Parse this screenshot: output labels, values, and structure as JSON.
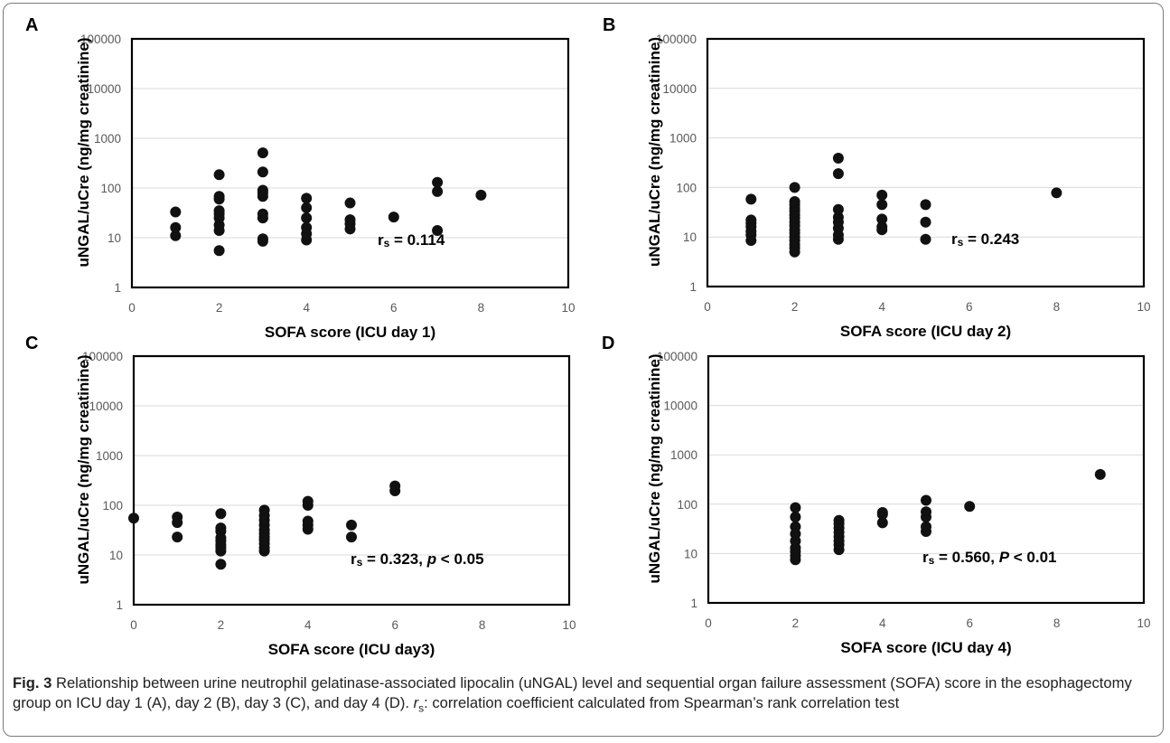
{
  "chart_data": [
    {
      "type": "scatter",
      "panel_label": "A",
      "xlabel": "SOFA score (ICU day 1)",
      "ylabel": "uNGAL/uCre (ng/mg creatinine)",
      "xlim": [
        0,
        10
      ],
      "ylim": [
        1,
        100000
      ],
      "yscale": "log",
      "x_ticks": [
        "0",
        "2",
        "4",
        "6",
        "8",
        "10"
      ],
      "y_ticks": [
        "1",
        "10",
        "100",
        "1000",
        "10000",
        "100000"
      ],
      "grid": "horizontal",
      "annotation_r": "r",
      "annotation_sub": "s",
      "annotation_text": " = 0.114",
      "annotation_p_label": "",
      "annotation_p_text": "",
      "points": [
        [
          1,
          11
        ],
        [
          1,
          16
        ],
        [
          1,
          33
        ],
        [
          2,
          5.5
        ],
        [
          2,
          14
        ],
        [
          2,
          18
        ],
        [
          2,
          25
        ],
        [
          2,
          30
        ],
        [
          2,
          35
        ],
        [
          2,
          60
        ],
        [
          2,
          68
        ],
        [
          2,
          185
        ],
        [
          3,
          8.5
        ],
        [
          3,
          9.5
        ],
        [
          3,
          25
        ],
        [
          3,
          30
        ],
        [
          3,
          68
        ],
        [
          3,
          80
        ],
        [
          3,
          90
        ],
        [
          3,
          210
        ],
        [
          3,
          510
        ],
        [
          4,
          9
        ],
        [
          4,
          12
        ],
        [
          4,
          16
        ],
        [
          4,
          25
        ],
        [
          4,
          40
        ],
        [
          4,
          62
        ],
        [
          5,
          15
        ],
        [
          5,
          19
        ],
        [
          5,
          23
        ],
        [
          5,
          50
        ],
        [
          6,
          26
        ],
        [
          7,
          14
        ],
        [
          7,
          85
        ],
        [
          7,
          130
        ],
        [
          8,
          72
        ]
      ]
    },
    {
      "type": "scatter",
      "panel_label": "B",
      "xlabel": "SOFA score (ICU day 2)",
      "ylabel": "uNGAL/uCre (ng/mg creatinine)",
      "xlim": [
        0,
        10
      ],
      "ylim": [
        1,
        100000
      ],
      "yscale": "log",
      "x_ticks": [
        "0",
        "2",
        "4",
        "6",
        "8",
        "10"
      ],
      "y_ticks": [
        "1",
        "10",
        "100",
        "1000",
        "10000",
        "100000"
      ],
      "grid": "horizontal",
      "annotation_r": "r",
      "annotation_sub": "s",
      "annotation_text": " = 0.243",
      "annotation_p_label": "",
      "annotation_p_text": "",
      "points": [
        [
          1,
          8.5
        ],
        [
          1,
          11
        ],
        [
          1,
          13
        ],
        [
          1,
          16
        ],
        [
          1,
          19
        ],
        [
          1,
          22
        ],
        [
          1,
          58
        ],
        [
          2,
          5
        ],
        [
          2,
          6
        ],
        [
          2,
          7
        ],
        [
          2,
          8.5
        ],
        [
          2,
          10
        ],
        [
          2,
          12
        ],
        [
          2,
          14
        ],
        [
          2,
          17
        ],
        [
          2,
          20
        ],
        [
          2,
          24
        ],
        [
          2,
          28
        ],
        [
          2,
          33
        ],
        [
          2,
          38
        ],
        [
          2,
          45
        ],
        [
          2,
          52
        ],
        [
          2,
          100
        ],
        [
          3,
          9
        ],
        [
          3,
          11
        ],
        [
          3,
          15
        ],
        [
          3,
          20
        ],
        [
          3,
          25
        ],
        [
          3,
          36
        ],
        [
          3,
          190
        ],
        [
          3,
          390
        ],
        [
          4,
          14
        ],
        [
          4,
          16
        ],
        [
          4,
          23
        ],
        [
          4,
          45
        ],
        [
          4,
          70
        ],
        [
          5,
          9
        ],
        [
          5,
          20
        ],
        [
          5,
          45
        ],
        [
          8,
          78
        ]
      ]
    },
    {
      "type": "scatter",
      "panel_label": "C",
      "xlabel": "SOFA score (ICU day3)",
      "ylabel": "uNGAL/uCre (ng/mg  creatinine)",
      "xlim": [
        0,
        10
      ],
      "ylim": [
        1,
        100000
      ],
      "yscale": "log",
      "x_ticks": [
        "0",
        "2",
        "4",
        "6",
        "8",
        "10"
      ],
      "y_ticks": [
        "1",
        "10",
        "100",
        "1000",
        "10000",
        "100000"
      ],
      "grid": "horizontal",
      "annotation_r": "r",
      "annotation_sub": "s",
      "annotation_text": " = 0.323,  ",
      "annotation_p_label": "p",
      "annotation_p_text": " < 0.05",
      "points": [
        [
          0,
          55
        ],
        [
          1,
          23
        ],
        [
          1,
          45
        ],
        [
          1,
          58
        ],
        [
          2,
          6.5
        ],
        [
          2,
          12
        ],
        [
          2,
          14
        ],
        [
          2,
          16
        ],
        [
          2,
          19
        ],
        [
          2,
          22
        ],
        [
          2,
          30
        ],
        [
          2,
          35
        ],
        [
          2,
          68
        ],
        [
          3,
          12
        ],
        [
          3,
          14
        ],
        [
          3,
          17
        ],
        [
          3,
          20
        ],
        [
          3,
          23
        ],
        [
          3,
          27
        ],
        [
          3,
          32
        ],
        [
          3,
          40
        ],
        [
          3,
          50
        ],
        [
          3,
          62
        ],
        [
          3,
          80
        ],
        [
          4,
          33
        ],
        [
          4,
          40
        ],
        [
          4,
          48
        ],
        [
          4,
          100
        ],
        [
          4,
          120
        ],
        [
          5,
          23
        ],
        [
          5,
          40
        ],
        [
          6,
          195
        ],
        [
          6,
          245
        ]
      ]
    },
    {
      "type": "scatter",
      "panel_label": "D",
      "xlabel": "SOFA score (ICU day 4)",
      "ylabel": "uNGAL/uCre (ng/mg creatinine)",
      "xlim": [
        0,
        10
      ],
      "ylim": [
        1,
        100000
      ],
      "yscale": "log",
      "x_ticks": [
        "0",
        "2",
        "4",
        "6",
        "8",
        "10"
      ],
      "y_ticks": [
        "1",
        "10",
        "100",
        "1000",
        "10000",
        "100000"
      ],
      "grid": "horizontal",
      "annotation_r": "r",
      "annotation_sub": "s",
      "annotation_text": " = 0.560,  ",
      "annotation_p_label": "P",
      "annotation_p_text": " < 0.01",
      "points": [
        [
          2,
          7.5
        ],
        [
          2,
          9
        ],
        [
          2,
          11
        ],
        [
          2,
          13
        ],
        [
          2,
          18
        ],
        [
          2,
          25
        ],
        [
          2,
          35
        ],
        [
          2,
          55
        ],
        [
          2,
          85
        ],
        [
          3,
          12
        ],
        [
          3,
          15
        ],
        [
          3,
          18
        ],
        [
          3,
          22
        ],
        [
          3,
          27
        ],
        [
          3,
          33
        ],
        [
          3,
          40
        ],
        [
          3,
          47
        ],
        [
          4,
          42
        ],
        [
          4,
          62
        ],
        [
          4,
          68
        ],
        [
          5,
          28
        ],
        [
          5,
          35
        ],
        [
          5,
          55
        ],
        [
          5,
          70
        ],
        [
          5,
          120
        ],
        [
          6,
          90
        ],
        [
          9,
          400
        ]
      ]
    }
  ],
  "caption": {
    "fig_label": "Fig. 3",
    "text_a": " Relationship between urine neutrophil gelatinase-associated lipocalin (uNGAL) level and sequential organ failure assessment (SOFA) score in the esophagectomy group on ICU day 1 (A), day 2 (B), day 3 (C), and day 4 (D). ",
    "r_symbol": "r",
    "r_sub": "s",
    "text_b": ": correlation coefficient calculated from Spearman’s rank correlation test"
  }
}
